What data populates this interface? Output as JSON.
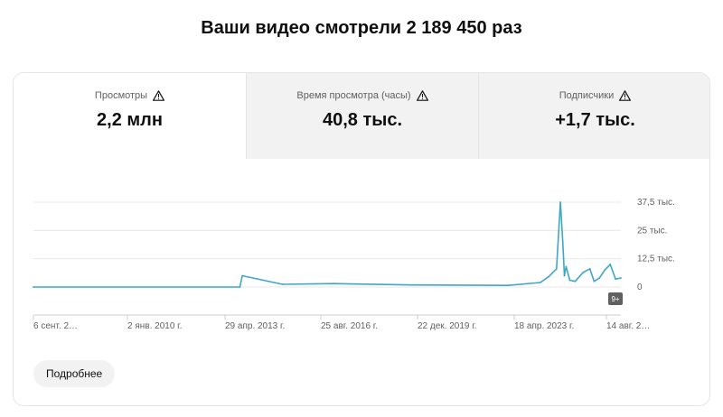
{
  "headline": "Ваши видео смотрели 2 189 450 раз",
  "tabs": [
    {
      "label": "Просмотры",
      "value": "2,2 млн",
      "selected": true,
      "icon": "warning-icon"
    },
    {
      "label": "Время просмотра (часы)",
      "value": "40,8 тыс.",
      "selected": false,
      "icon": "warning-icon"
    },
    {
      "label": "Подписчики",
      "value": "+1,7 тыс.",
      "selected": false,
      "icon": "warning-icon"
    }
  ],
  "chart_data": {
    "type": "line",
    "y_ticks": [
      "37,5 тыс.",
      "25 тыс.",
      "12,5 тыс.",
      "0"
    ],
    "y_tick_values": [
      37500,
      25000,
      12500,
      0
    ],
    "ylim": [
      0,
      37500
    ],
    "x_ticks": [
      "6 сент. 2…",
      "2 янв. 2010 г.",
      "29 апр. 2013 г.",
      "25 авг. 2016 г.",
      "22 дек. 2019 г.",
      "18 апр. 2023 г.",
      "14 авг. 2…"
    ],
    "series": [
      {
        "color": "#3ea6c9",
        "x": [
          "2006-09-06",
          "2013-02-01",
          "2013-03-01",
          "2014-06-01",
          "2016-01-01",
          "2018-06-01",
          "2021-06-01",
          "2022-06-01",
          "2022-09-01",
          "2022-12-01",
          "2023-01-15",
          "2023-02-10",
          "2023-02-20",
          "2023-03-01",
          "2023-03-20",
          "2023-05-01",
          "2023-07-01",
          "2023-10-01",
          "2023-12-15",
          "2024-02-01",
          "2024-04-01",
          "2024-06-01",
          "2024-08-01",
          "2024-10-01",
          "2024-11-30"
        ],
        "values": [
          0,
          0,
          5000,
          1200,
          1500,
          900,
          700,
          2000,
          4500,
          8000,
          37500,
          20000,
          12000,
          5000,
          9000,
          3000,
          2500,
          6500,
          8000,
          2500,
          4000,
          7500,
          10000,
          3500,
          4000
        ]
      }
    ],
    "badge": "9+",
    "grid": true
  },
  "more_button": "Подробнее",
  "colors": {
    "accent": "#3ea6c9",
    "tab_selected": "#ffffff",
    "tab_idle": "#f2f2f2"
  }
}
